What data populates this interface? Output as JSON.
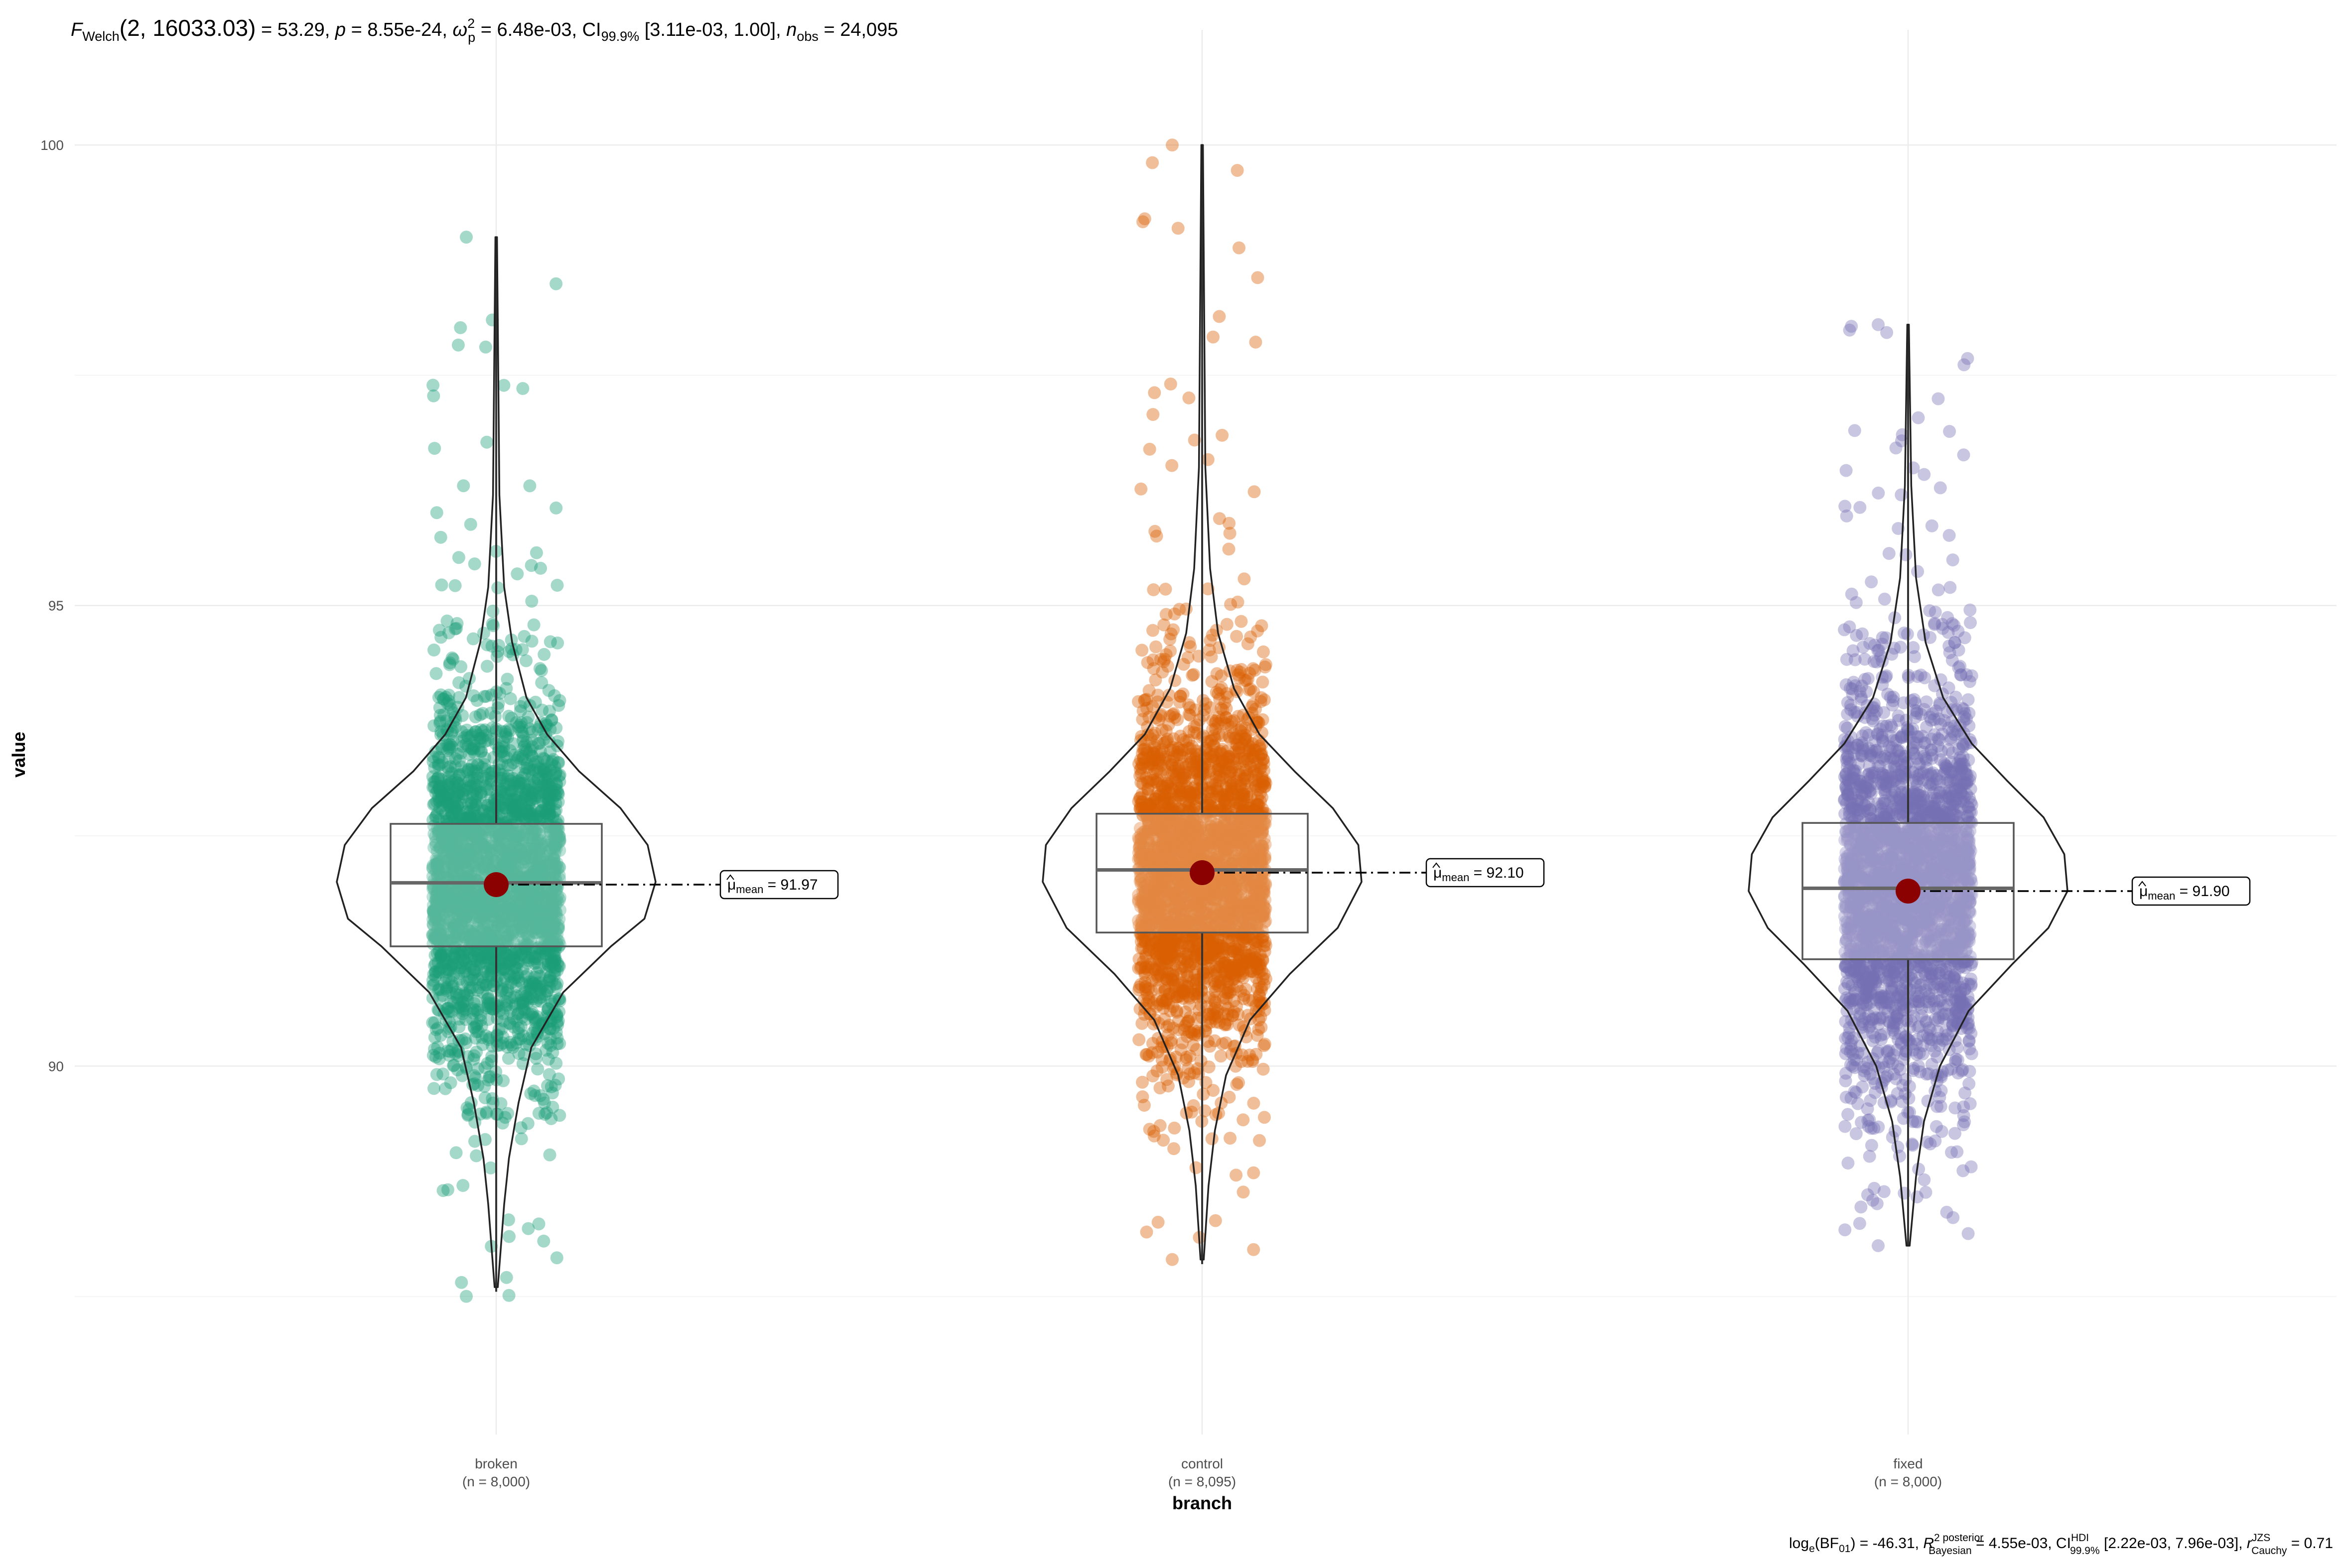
{
  "chart_data": {
    "type": "violin-box-scatter",
    "title_parts": {
      "stat": "F",
      "stat_sub": "Welch",
      "args": "(2, 16033.03)",
      "stat_value": " = 53.29, ",
      "p_label": "p",
      "p_value": " = 8.55e-24, ",
      "effect": "ω",
      "effect_sup": "2",
      "effect_sub": "p",
      "effect_value": " = 6.48e-03, CI",
      "ci_sub": "99.9%",
      "ci_value": " [3.11e-03, 1.00], ",
      "n_label": "n",
      "n_sub": "obs",
      "n_value": " = 24,095"
    },
    "caption_parts": {
      "bf": "log",
      "bf_sub": "e",
      "bf_mid": "(BF",
      "bf_sub2": "01",
      "bf_value": ") = -46.31, ",
      "r2": "R",
      "r2_sup": "2 posterior",
      "r2_sub": "Bayesian",
      "r2_value": " = 4.55e-03, CI",
      "ci_sup": "HDI",
      "ci_sub": "99.9%",
      "ci_value": " [2.22e-03, 7.96e-03], ",
      "r": "r",
      "r_sup": "JZS",
      "r_sub": "Cauchy",
      "r_value": " = 0.71"
    },
    "xlabel": "branch",
    "ylabel": "value",
    "ylim": [
      86,
      101.25
    ],
    "y_ticks": [
      90,
      95,
      100
    ],
    "y_tick_labels": [
      "90",
      "95",
      "100"
    ],
    "groups": [
      {
        "name": "broken",
        "n_label": "(n = 8,000)",
        "color": "#1B9E77",
        "mean": 91.97,
        "mean_label_prefix": "μ",
        "mean_label_sub": "mean",
        "mean_label_value": " = 91.97",
        "q1": 91.3,
        "median": 91.99,
        "q3": 92.63,
        "whisker_low": 87.55,
        "whisker_high": 99.0,
        "points_min": 87.5,
        "points_max": 99.0,
        "violin_width": [
          [
            87.6,
            0.01
          ],
          [
            88.5,
            0.05
          ],
          [
            89.0,
            0.08
          ],
          [
            89.6,
            0.14
          ],
          [
            90.2,
            0.22
          ],
          [
            90.8,
            0.42
          ],
          [
            91.3,
            0.72
          ],
          [
            91.6,
            0.93
          ],
          [
            92.0,
            1.0
          ],
          [
            92.4,
            0.95
          ],
          [
            92.8,
            0.78
          ],
          [
            93.2,
            0.52
          ],
          [
            93.6,
            0.32
          ],
          [
            94.0,
            0.19
          ],
          [
            94.6,
            0.1
          ],
          [
            95.2,
            0.05
          ],
          [
            96.2,
            0.02
          ],
          [
            99.0,
            0.005
          ]
        ]
      },
      {
        "name": "control",
        "n_label": "(n = 8,095)",
        "color": "#D95F02",
        "mean": 92.1,
        "mean_label_prefix": "μ",
        "mean_label_sub": "mean",
        "mean_label_value": " = 92.10",
        "q1": 91.45,
        "median": 92.13,
        "q3": 92.74,
        "whisker_low": 87.85,
        "whisker_high": 100.0,
        "points_min": 87.9,
        "points_max": 100.0,
        "violin_width": [
          [
            87.9,
            0.01
          ],
          [
            88.7,
            0.04
          ],
          [
            89.3,
            0.08
          ],
          [
            89.9,
            0.15
          ],
          [
            90.5,
            0.3
          ],
          [
            91.0,
            0.55
          ],
          [
            91.5,
            0.85
          ],
          [
            92.0,
            1.0
          ],
          [
            92.4,
            0.98
          ],
          [
            92.8,
            0.82
          ],
          [
            93.2,
            0.58
          ],
          [
            93.6,
            0.36
          ],
          [
            94.1,
            0.2
          ],
          [
            94.7,
            0.1
          ],
          [
            95.4,
            0.05
          ],
          [
            96.5,
            0.02
          ],
          [
            100.0,
            0.005
          ]
        ]
      },
      {
        "name": "fixed",
        "n_label": "(n = 8,000)",
        "color": "#7570B3",
        "mean": 91.9,
        "mean_label_prefix": "μ",
        "mean_label_sub": "mean",
        "mean_label_value": " = 91.90",
        "q1": 91.16,
        "median": 91.93,
        "q3": 92.64,
        "whisker_low": 88.05,
        "whisker_high": 98.05,
        "points_min": 88.05,
        "points_max": 98.05,
        "violin_width": [
          [
            88.05,
            0.01
          ],
          [
            88.8,
            0.05
          ],
          [
            89.4,
            0.1
          ],
          [
            90.0,
            0.2
          ],
          [
            90.6,
            0.38
          ],
          [
            91.1,
            0.65
          ],
          [
            91.5,
            0.88
          ],
          [
            91.9,
            1.0
          ],
          [
            92.3,
            0.98
          ],
          [
            92.7,
            0.85
          ],
          [
            93.1,
            0.62
          ],
          [
            93.5,
            0.4
          ],
          [
            94.0,
            0.22
          ],
          [
            94.6,
            0.11
          ],
          [
            95.3,
            0.05
          ],
          [
            96.3,
            0.02
          ],
          [
            98.05,
            0.005
          ]
        ]
      }
    ]
  }
}
